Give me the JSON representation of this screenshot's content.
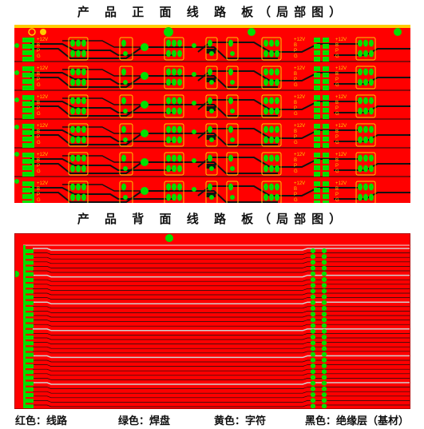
{
  "front_title": "产 品 正 面 线 路 板（局部图）",
  "back_title": "产 品 背 面 线 路 板（局部图）",
  "row_labels": [
    "+12V",
    "B",
    "P",
    "G"
  ],
  "legend": {
    "red": "红色：线路",
    "green": "绿色：焊盘",
    "yellow": "黄色：字符",
    "black": "黑色：绝缘层（基材）"
  },
  "colors": {
    "trace_red": "#ff0000",
    "pad_green": "#00e000",
    "silk_yellow": "#ffcc00",
    "substrate_black": "#111111"
  }
}
